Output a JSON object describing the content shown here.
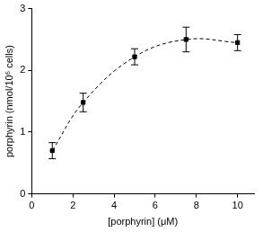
{
  "chart_data": {
    "type": "line",
    "x_label": "[porphyrin] (μM)",
    "y_label": "porphyrin (nmol/10⁶ cells)",
    "x": [
      1,
      2.5,
      5,
      7.5,
      10
    ],
    "values": [
      0.7,
      1.48,
      2.22,
      2.5,
      2.45
    ],
    "errors": [
      0.13,
      0.15,
      0.13,
      0.2,
      0.13
    ],
    "color": "#000000",
    "marker": "square",
    "line_style": "dashed",
    "xlim": [
      0,
      10.8
    ],
    "xticks": [
      0,
      2,
      4,
      6,
      8,
      10
    ],
    "ylim": [
      0,
      3
    ],
    "yticks": [
      0,
      1,
      2,
      3
    ],
    "grid": false
  }
}
